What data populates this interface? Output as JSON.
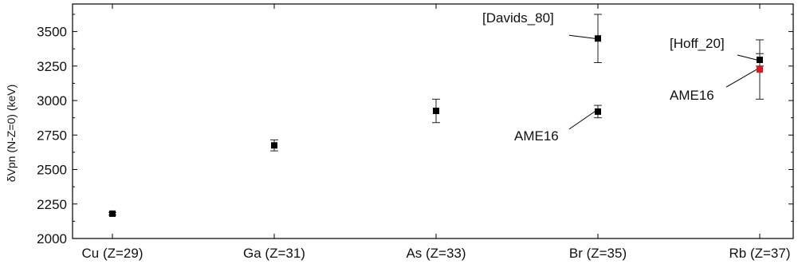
{
  "chart_data": {
    "type": "scatter",
    "title": "",
    "xlabel": "",
    "ylabel": "δVpn (N-Z=0) (keV)",
    "categories": [
      "Cu (Z=29)",
      "Ga (Z=31)",
      "As (Z=33)",
      "Br (Z=35)",
      "Rb (Z=37)"
    ],
    "ylim": [
      2000,
      3700
    ],
    "yticks": [
      2000,
      2250,
      2500,
      2750,
      3000,
      3250,
      3500
    ],
    "grid": false,
    "series": [
      {
        "color": "#000000",
        "points": [
          {
            "category": "Cu (Z=29)",
            "y": 2180,
            "err": 10
          },
          {
            "category": "Ga (Z=31)",
            "y": 2675,
            "err": 40
          },
          {
            "category": "As (Z=33)",
            "y": 2925,
            "err": 85
          },
          {
            "category": "Br (Z=35)",
            "y": 2920,
            "err": 45
          },
          {
            "category": "Br (Z=35)",
            "y": 3450,
            "err": 175
          },
          {
            "category": "Rb (Z=37)",
            "y": 3295,
            "err": 45
          }
        ]
      },
      {
        "color": "#e8141c",
        "points": [
          {
            "category": "Rb (Z=37)",
            "y": 3225,
            "err": 215
          }
        ]
      }
    ],
    "annotations": [
      {
        "text": "[Davids_80]",
        "category": "Br (Z=35)",
        "y": 3450
      },
      {
        "text": "AME16",
        "category": "Br (Z=35)",
        "y": 2920
      },
      {
        "text": "[Hoff_20]",
        "category": "Rb (Z=37)",
        "y": 3295
      },
      {
        "text": "AME16",
        "category": "Rb (Z=37)",
        "y": 3225
      }
    ]
  }
}
